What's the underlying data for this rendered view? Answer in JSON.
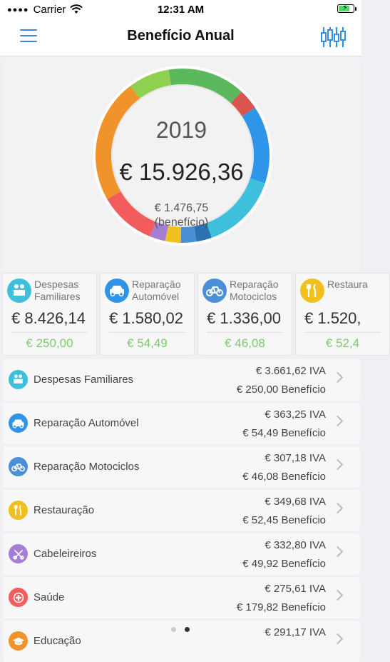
{
  "status": {
    "carrier": "Carrier",
    "time": "12:31 AM",
    "battery_level": 0.8
  },
  "nav": {
    "title": "Benefício Anual"
  },
  "chart_data": {
    "type": "pie",
    "title": "2019",
    "total": "€ 15.926,36",
    "benefit": "€ 1.476,75",
    "benefit_label": "(benefício)",
    "slices": [
      {
        "value": 24,
        "color": "#f0932b"
      },
      {
        "value": 8,
        "color": "#8fd14f"
      },
      {
        "value": 15,
        "color": "#5cb85c"
      },
      {
        "value": 4,
        "color": "#d9534f"
      },
      {
        "value": 15,
        "color": "#2f95e8"
      },
      {
        "value": 15,
        "color": "#3ec0dc"
      },
      {
        "value": 3,
        "color": "#2a72b0"
      },
      {
        "value": 3,
        "color": "#4a90d9"
      },
      {
        "value": 3,
        "color": "#f0c020"
      },
      {
        "value": 3,
        "color": "#a57fd6"
      },
      {
        "value": 11,
        "color": "#f25c5c"
      }
    ]
  },
  "cards": [
    {
      "label": "Despesas\nFamiliares",
      "total": "€ 8.426,14",
      "benefit": "€ 250,00",
      "icon": "family-icon",
      "color": "#3ec0dc"
    },
    {
      "label": "Reparação\nAutomóvel",
      "total": "€ 1.580,02",
      "benefit": "€ 54,49",
      "icon": "car-icon",
      "color": "#2f95e8"
    },
    {
      "label": "Reparação\nMotociclos",
      "total": "€ 1.336,00",
      "benefit": "€ 46,08",
      "icon": "bicycle-icon",
      "color": "#4a90d9"
    },
    {
      "label": "Restaura",
      "total": "€ 1.520,",
      "benefit": "€ 52,4",
      "icon": "cutlery-icon",
      "color": "#f0c020"
    }
  ],
  "rows": [
    {
      "label": "Despesas Familiares",
      "iva": "€ 3.661,62 IVA",
      "benefit": "€ 250,00 Benefício",
      "icon": "family-icon",
      "color": "#3ec0dc"
    },
    {
      "label": "Reparação Automóvel",
      "iva": "€ 363,25 IVA",
      "benefit": "€ 54,49 Benefício",
      "icon": "car-icon",
      "color": "#2f95e8"
    },
    {
      "label": "Reparação Motociclos",
      "iva": "€ 307,18 IVA",
      "benefit": "€ 46,08 Benefício",
      "icon": "bicycle-icon",
      "color": "#4a90d9"
    },
    {
      "label": "Restauração",
      "iva": "€ 349,68 IVA",
      "benefit": "€ 52,45 Benefício",
      "icon": "cutlery-icon",
      "color": "#f0c020"
    },
    {
      "label": "Cabeleireiros",
      "iva": "€ 332,80 IVA",
      "benefit": "€ 49,92 Benefício",
      "icon": "scissors-icon",
      "color": "#a57fd6"
    },
    {
      "label": "Saúde",
      "iva": "€ 275,61 IVA",
      "benefit": "€ 179,82 Benefício",
      "icon": "medical-icon",
      "color": "#f25c5c"
    },
    {
      "label": "Educação",
      "iva": "€ 291,17 IVA",
      "benefit": "",
      "icon": "education-icon",
      "color": "#f0932b"
    }
  ],
  "pager": {
    "count": 2,
    "active": 1
  }
}
